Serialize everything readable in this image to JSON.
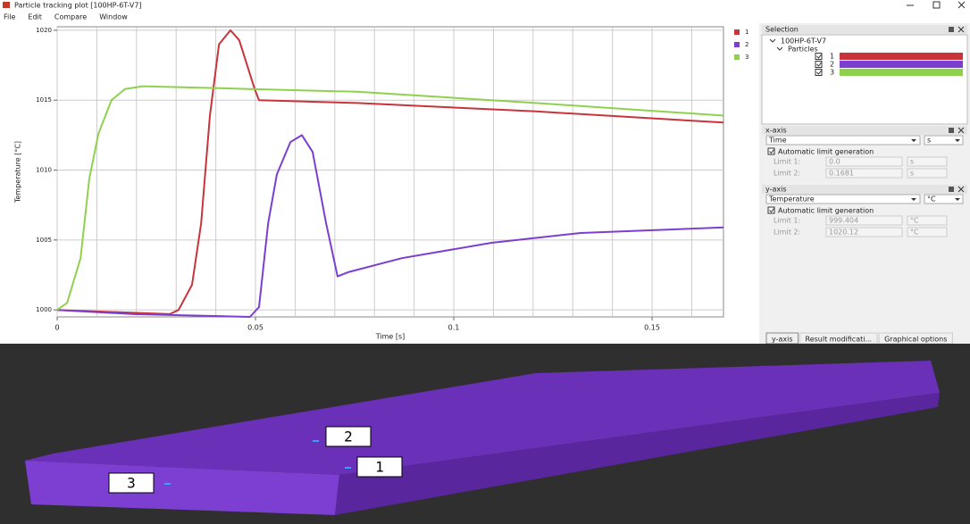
{
  "window": {
    "title": "Particle tracking plot [100HP-6T-V7]",
    "menu": [
      "File",
      "Edit",
      "Compare",
      "Window"
    ]
  },
  "chart_data": {
    "type": "line",
    "x_label": "Time [s]",
    "y_label": "Temperature [°C]",
    "xlim": [
      0,
      0.168
    ],
    "ylim": [
      999.5,
      1020.25
    ],
    "xticks": [
      0,
      0.05,
      0.1,
      0.15
    ],
    "xminor": [
      0.01,
      0.02,
      0.03,
      0.04,
      0.06,
      0.07,
      0.08,
      0.09,
      0.11,
      0.12,
      0.13,
      0.14,
      0.16
    ],
    "yticks": [
      1000,
      1005,
      1010,
      1015,
      1020
    ],
    "grid": true,
    "legend": "right",
    "series": [
      {
        "name": "1",
        "color": "#c8343a",
        "x": [
          0,
          0.0284,
          0.0306,
          0.034,
          0.0363,
          0.0385,
          0.0408,
          0.0437,
          0.0459,
          0.0498,
          0.0509,
          0.0757,
          0.1207,
          0.168
        ],
        "values": [
          1000,
          999.7,
          1000,
          1001.8,
          1006.2,
          1013.9,
          1019,
          1020,
          1019.3,
          1015.8,
          1015,
          1014.8,
          1014.2,
          1013.4
        ]
      },
      {
        "name": "2",
        "color": "#7b3fd0",
        "x": [
          0,
          0.0194,
          0.0486,
          0.0509,
          0.0532,
          0.0554,
          0.0588,
          0.0617,
          0.0644,
          0.0678,
          0.0707,
          0.0734,
          0.0869,
          0.1095,
          0.132,
          0.168
        ],
        "values": [
          1000,
          999.7,
          999.5,
          1000.2,
          1006.2,
          1009.7,
          1012,
          1012.5,
          1011.3,
          1006.2,
          1002.4,
          1002.7,
          1003.7,
          1004.8,
          1005.5,
          1005.9
        ]
      },
      {
        "name": "3",
        "color": "#8fd14f",
        "x": [
          0,
          0.0025,
          0.0059,
          0.0081,
          0.0104,
          0.0137,
          0.0171,
          0.0216,
          0.0486,
          0.0757,
          0.1207,
          0.168
        ],
        "values": [
          1000,
          1000.5,
          1003.7,
          1009.4,
          1012.6,
          1015,
          1015.8,
          1016,
          1015.8,
          1015.6,
          1014.8,
          1013.9
        ]
      }
    ]
  },
  "panels": {
    "selection": {
      "title": "Selection",
      "root": "100HP-6T-V7",
      "group": "Particles"
    },
    "x_axis": {
      "title": "x-axis",
      "quantity": "Time",
      "unit": "s",
      "auto": "Automatic limit generation",
      "limit1_label": "Limit 1:",
      "limit1": "0.0",
      "limit1_unit": "s",
      "limit2_label": "Limit 2:",
      "limit2": "0.1681",
      "limit2_unit": "s"
    },
    "y_axis": {
      "title": "y-axis",
      "quantity": "Temperature",
      "unit": "°C",
      "auto": "Automatic limit generation",
      "limit1_label": "Limit 1:",
      "limit1": "999.404",
      "limit1_unit": "°C",
      "limit2_label": "Limit 2:",
      "limit2": "1020.12",
      "limit2_unit": "°C"
    }
  },
  "tabs": [
    "y-axis",
    "Result modificati...",
    "Graphical options"
  ],
  "view3d": {
    "labels": [
      "1",
      "2",
      "3"
    ]
  }
}
